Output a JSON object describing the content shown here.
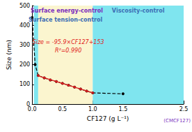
{
  "chart_data": {
    "type": "line",
    "x_label": "CF127 (g L⁻¹)",
    "y_label": "Size (nm)",
    "xlim": [
      0,
      2.5
    ],
    "xticks": [
      {
        "value": 0,
        "label": "0.0"
      },
      0.5,
      {
        "value": 1,
        "label": "1.0"
      },
      1.5,
      2.5
    ],
    "ylim": [
      0,
      500
    ],
    "yticks": [
      0,
      100,
      200,
      300,
      400,
      500
    ],
    "grid": false,
    "regions": [
      {
        "label": "Surface energy-control",
        "start": 0.03,
        "end": 0.1,
        "color": "#7fe5ef"
      },
      {
        "label": "Surface tension-control",
        "start": 0.1,
        "end": 1.0,
        "color": "#fbf5cf"
      },
      {
        "label": "Viscosity-control",
        "start": 1.0,
        "end": 2.5,
        "color": "#7fe5ef"
      }
    ],
    "annotations": [
      "Size = -95.9×CF127+153",
      "R²=0.990"
    ],
    "cmc_label": "(CMCF127)",
    "series": [
      {
        "type": "line",
        "color": "#000000",
        "line_style": "dashed",
        "marker": "circle",
        "x": [
          0,
          0.05,
          0.1,
          0.2,
          0.3,
          0.4,
          0.5,
          0.6,
          0.7,
          0.8,
          0.9,
          1.0,
          1.5
        ],
        "values": [
          440,
          200,
          145,
          133,
          122,
          114,
          105,
          96,
          86,
          76,
          66,
          57,
          52
        ]
      },
      {
        "type": "scatter",
        "color": "#e02020",
        "marker": "circle",
        "x": [
          0.1,
          0.2,
          0.3,
          0.4,
          0.5,
          0.6,
          0.7,
          0.8,
          0.9,
          1.0
        ],
        "values": [
          145,
          133,
          122,
          114,
          105,
          96,
          86,
          76,
          66,
          57
        ]
      },
      {
        "type": "line",
        "color": "#e02020",
        "line_style": "solid",
        "x": [
          0.1,
          1.0
        ],
        "values": [
          143.4,
          57.1
        ]
      }
    ]
  }
}
